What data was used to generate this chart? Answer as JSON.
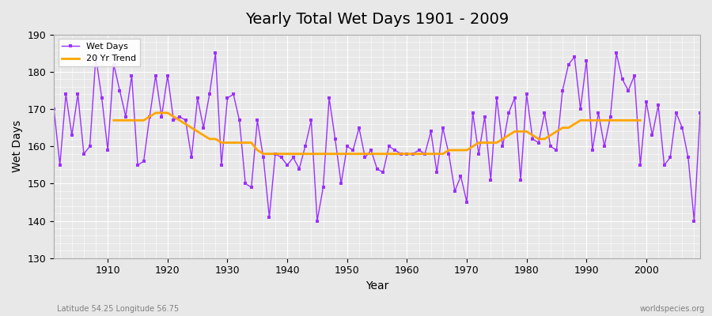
{
  "title": "Yearly Total Wet Days 1901 - 2009",
  "xlabel": "Year",
  "ylabel": "Wet Days",
  "subtitle_left": "Latitude 54.25 Longitude 56.75",
  "subtitle_right": "worldspecies.org",
  "legend_labels": [
    "Wet Days",
    "20 Yr Trend"
  ],
  "wet_days_color": "#9B30FF",
  "trend_color": "#FFA500",
  "background_color": "#E8E8E8",
  "ylim": [
    130,
    190
  ],
  "xlim": [
    1901,
    2009
  ],
  "years": [
    1901,
    1902,
    1903,
    1904,
    1905,
    1906,
    1907,
    1908,
    1909,
    1910,
    1911,
    1912,
    1913,
    1914,
    1915,
    1916,
    1917,
    1918,
    1919,
    1920,
    1921,
    1922,
    1923,
    1924,
    1925,
    1926,
    1927,
    1928,
    1929,
    1930,
    1931,
    1932,
    1933,
    1934,
    1935,
    1936,
    1937,
    1938,
    1939,
    1940,
    1941,
    1942,
    1943,
    1944,
    1945,
    1946,
    1947,
    1948,
    1949,
    1950,
    1951,
    1952,
    1953,
    1954,
    1955,
    1956,
    1957,
    1958,
    1959,
    1960,
    1961,
    1962,
    1963,
    1964,
    1965,
    1966,
    1967,
    1968,
    1969,
    1970,
    1971,
    1972,
    1973,
    1974,
    1975,
    1976,
    1977,
    1978,
    1979,
    1980,
    1981,
    1982,
    1983,
    1984,
    1985,
    1986,
    1987,
    1988,
    1989,
    1990,
    1991,
    1992,
    1993,
    1994,
    1995,
    1996,
    1997,
    1998,
    1999,
    2000,
    2001,
    2002,
    2003,
    2004,
    2005,
    2006,
    2007,
    2008,
    2009
  ],
  "wet_days": [
    170,
    155,
    174,
    163,
    174,
    158,
    160,
    184,
    173,
    159,
    182,
    175,
    168,
    179,
    155,
    156,
    168,
    179,
    168,
    179,
    167,
    168,
    167,
    157,
    173,
    165,
    174,
    185,
    155,
    173,
    174,
    167,
    150,
    149,
    167,
    157,
    141,
    158,
    157,
    155,
    157,
    154,
    160,
    167,
    140,
    149,
    173,
    162,
    150,
    160,
    159,
    165,
    157,
    159,
    154,
    153,
    160,
    159,
    158,
    158,
    158,
    159,
    158,
    164,
    153,
    165,
    158,
    148,
    152,
    145,
    169,
    158,
    168,
    151,
    173,
    160,
    169,
    173,
    151,
    174,
    162,
    161,
    169,
    160,
    159,
    175,
    182,
    184,
    170,
    183,
    159,
    169,
    160,
    168,
    185,
    178,
    175,
    179,
    155,
    172,
    163,
    171,
    155,
    157,
    169,
    165,
    157,
    140,
    169
  ],
  "trend_years": [
    1911,
    1912,
    1913,
    1914,
    1915,
    1916,
    1917,
    1918,
    1919,
    1920,
    1921,
    1922,
    1923,
    1924,
    1925,
    1926,
    1927,
    1928,
    1929,
    1930,
    1931,
    1932,
    1933,
    1934,
    1935,
    1936,
    1937,
    1938,
    1939,
    1940,
    1941,
    1942,
    1943,
    1944,
    1945,
    1946,
    1947,
    1948,
    1949,
    1950,
    1951,
    1952,
    1953,
    1954,
    1955,
    1956,
    1957,
    1958,
    1959,
    1960,
    1961,
    1962,
    1963,
    1964,
    1965,
    1966,
    1967,
    1968,
    1969,
    1970,
    1971,
    1972,
    1973,
    1974,
    1975,
    1976,
    1977,
    1978,
    1979,
    1980,
    1981,
    1982,
    1983,
    1984,
    1985,
    1986,
    1987,
    1988,
    1989,
    1990,
    1991,
    1992,
    1993,
    1994,
    1995,
    1996,
    1997,
    1998,
    1999
  ],
  "trend_values": [
    167,
    167,
    167,
    167,
    167,
    167,
    168,
    169,
    169,
    169,
    168,
    167,
    166,
    165,
    164,
    163,
    162,
    162,
    161,
    161,
    161,
    161,
    161,
    161,
    159,
    158,
    158,
    158,
    158,
    158,
    158,
    158,
    158,
    158,
    158,
    158,
    158,
    158,
    158,
    158,
    158,
    158,
    158,
    158,
    158,
    158,
    158,
    158,
    158,
    158,
    158,
    158,
    158,
    158,
    158,
    158,
    159,
    159,
    159,
    159,
    160,
    161,
    161,
    161,
    161,
    162,
    163,
    164,
    164,
    164,
    163,
    162,
    162,
    163,
    164,
    165,
    165,
    166,
    167,
    167,
    167,
    167,
    167,
    167,
    167,
    167,
    167,
    167,
    167
  ]
}
